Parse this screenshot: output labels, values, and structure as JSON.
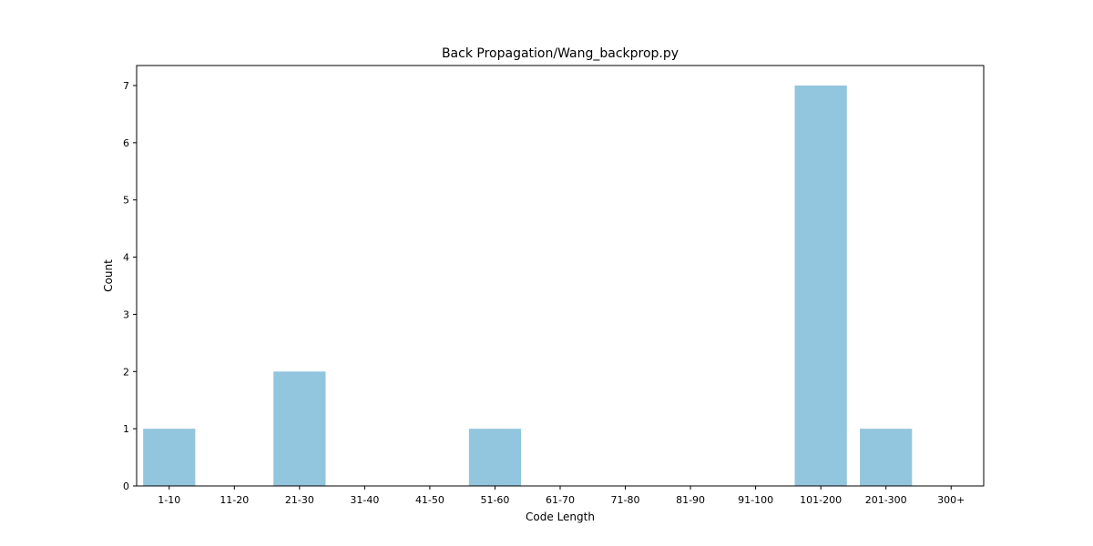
{
  "chart_data": {
    "type": "bar",
    "title": "Back Propagation/Wang_backprop.py",
    "xlabel": "Code Length",
    "ylabel": "Count",
    "categories": [
      "1-10",
      "11-20",
      "21-30",
      "31-40",
      "41-50",
      "51-60",
      "61-70",
      "71-80",
      "81-90",
      "91-100",
      "101-200",
      "201-300",
      "300+"
    ],
    "values": [
      1,
      0,
      2,
      0,
      0,
      1,
      0,
      0,
      0,
      0,
      7,
      1,
      0
    ],
    "ylim": [
      0,
      7.35
    ],
    "yticks": [
      "0",
      "1",
      "2",
      "3",
      "4",
      "5",
      "6",
      "7"
    ],
    "bar_color": "#92c5de",
    "grid": false,
    "legend": "none"
  }
}
